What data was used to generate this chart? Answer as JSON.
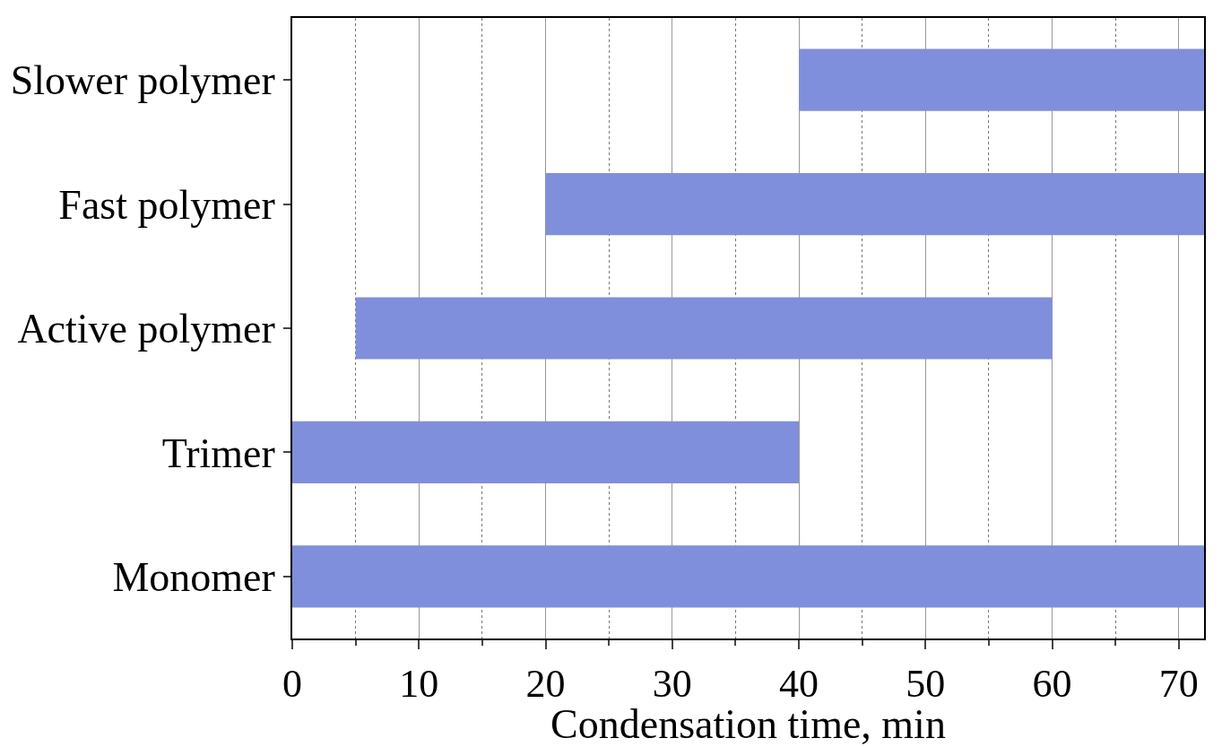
{
  "chart_data": {
    "type": "bar",
    "orientation": "horizontal",
    "xlabel": "Condensation time, min",
    "categories": [
      "Slower polymer",
      "Fast polymer",
      "Active polymer",
      "Trimer",
      "Monomer"
    ],
    "base": [
      40,
      20,
      5,
      0,
      0
    ],
    "values": [
      32,
      52,
      55,
      40,
      72
    ],
    "color": "#808fdb",
    "xlim": [
      0,
      72
    ],
    "xticks": [
      0,
      {
        "value": 5,
        "label": null
      },
      10,
      {
        "value": 15,
        "label": null
      },
      20,
      {
        "value": 25,
        "label": null
      },
      30,
      {
        "value": 35,
        "label": null
      },
      40,
      {
        "value": 45,
        "label": null
      },
      50,
      {
        "value": 55,
        "label": null
      },
      60,
      {
        "value": 65,
        "label": null
      },
      70
    ],
    "grid": "x"
  }
}
